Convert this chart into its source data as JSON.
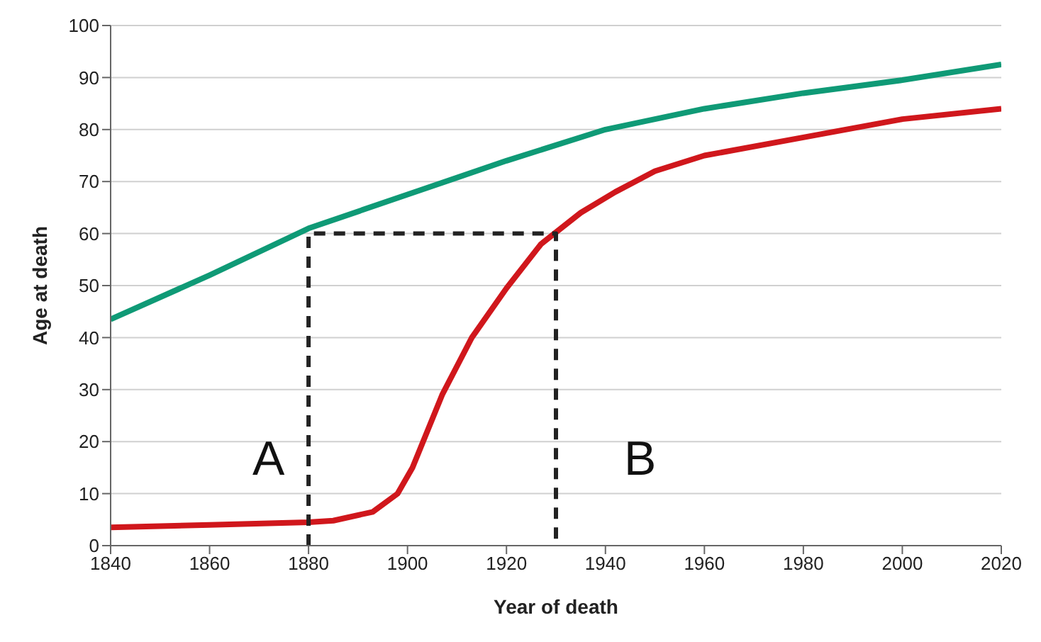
{
  "chart_data": {
    "type": "line",
    "xlabel": "Year of death",
    "ylabel": "Age at death",
    "xlim": [
      1840,
      2020
    ],
    "xticks": [
      1840,
      1860,
      1880,
      1900,
      1920,
      1940,
      1960,
      1980,
      2000,
      2020
    ],
    "ylim": [
      0,
      100
    ],
    "yticks": [
      0,
      10,
      20,
      30,
      40,
      50,
      60,
      70,
      80,
      90,
      100
    ],
    "grid": "y",
    "marker": "none",
    "series": [
      {
        "color": "#0f9a76",
        "x": [
          1840,
          1860,
          1880,
          1900,
          1920,
          1940,
          1960,
          1980,
          2000,
          2020
        ],
        "values": [
          43.5,
          52,
          61,
          67.5,
          74,
          80,
          84,
          87,
          89.5,
          92.5
        ]
      },
      {
        "color": "#d0171c",
        "x": [
          1840,
          1860,
          1880,
          1885,
          1893,
          1898,
          1901,
          1907,
          1913,
          1920,
          1927,
          1935,
          1942,
          1950,
          1960,
          1980,
          2000,
          2020
        ],
        "values": [
          3.5,
          4,
          4.5,
          4.8,
          6.5,
          10,
          15,
          29,
          40,
          49.5,
          58,
          64,
          68,
          72,
          75,
          78.5,
          82,
          84
        ]
      },
      {
        "color": "#222222",
        "line_style": "dashed",
        "x": [
          1880,
          1880,
          1930,
          1930
        ],
        "values": [
          0,
          60,
          60,
          0
        ]
      }
    ],
    "annotations": [
      "A",
      "B"
    ]
  }
}
